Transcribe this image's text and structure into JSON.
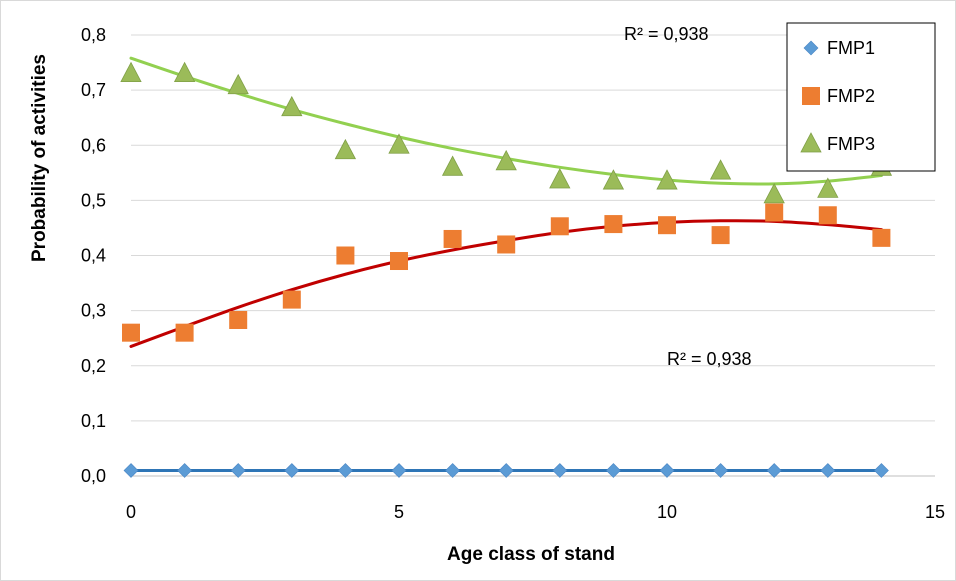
{
  "chart_data": {
    "type": "scatter",
    "xlabel": "Age class of stand",
    "ylabel": "Probability of activities",
    "xlim": [
      0,
      15
    ],
    "ylim": [
      0,
      0.8
    ],
    "xticks": [
      "0",
      "5",
      "10",
      "15"
    ],
    "xtick_values": [
      0,
      5,
      10,
      15
    ],
    "yticks": [
      "0,0",
      "0,1",
      "0,2",
      "0,3",
      "0,4",
      "0,5",
      "0,6",
      "0,7",
      "0,8"
    ],
    "ytick_values": [
      0,
      0.1,
      0.2,
      0.3,
      0.4,
      0.5,
      0.6,
      0.7,
      0.8
    ],
    "grid": "horizontal",
    "legend_position": "top-right",
    "x": [
      0,
      1,
      2,
      3,
      4,
      5,
      6,
      7,
      8,
      9,
      10,
      11,
      12,
      13,
      14
    ],
    "series": [
      {
        "name": "FMP1",
        "marker": "diamond",
        "color": "#5B9BD5",
        "trend_color": "#2E75B6",
        "values": [
          0.01,
          0.01,
          0.01,
          0.01,
          0.01,
          0.01,
          0.01,
          0.01,
          0.01,
          0.01,
          0.01,
          0.01,
          0.01,
          0.01,
          0.01
        ],
        "trend": [
          0.01,
          0.01,
          0.01,
          0.01,
          0.01,
          0.01,
          0.01,
          0.01,
          0.01,
          0.01,
          0.01,
          0.01,
          0.01,
          0.01,
          0.01
        ]
      },
      {
        "name": "FMP2",
        "marker": "square",
        "color": "#ED7D31",
        "trend_color": "#C00000",
        "values": [
          0.26,
          0.26,
          0.283,
          0.32,
          0.4,
          0.39,
          0.43,
          0.42,
          0.453,
          0.457,
          0.455,
          0.437,
          0.478,
          0.473,
          0.432
        ],
        "trend": [
          0.235,
          0.271,
          0.306,
          0.338,
          0.366,
          0.39,
          0.41,
          0.427,
          0.442,
          0.453,
          0.46,
          0.463,
          0.462,
          0.456,
          0.447
        ]
      },
      {
        "name": "FMP3",
        "marker": "triangle",
        "color": "#9BBB59",
        "trend_color": "#92D050",
        "values": [
          0.73,
          0.73,
          0.708,
          0.668,
          0.59,
          0.6,
          0.56,
          0.57,
          0.537,
          0.535,
          0.535,
          0.553,
          0.51,
          0.52,
          0.56
        ],
        "trend": [
          0.758,
          0.725,
          0.694,
          0.665,
          0.639,
          0.615,
          0.594,
          0.576,
          0.56,
          0.547,
          0.537,
          0.531,
          0.53,
          0.535,
          0.545
        ]
      }
    ],
    "annotations": [
      {
        "text": "R² = 0,938",
        "near_series": "FMP3"
      },
      {
        "text": "R² = 0,938",
        "near_series": "FMP2"
      }
    ]
  }
}
